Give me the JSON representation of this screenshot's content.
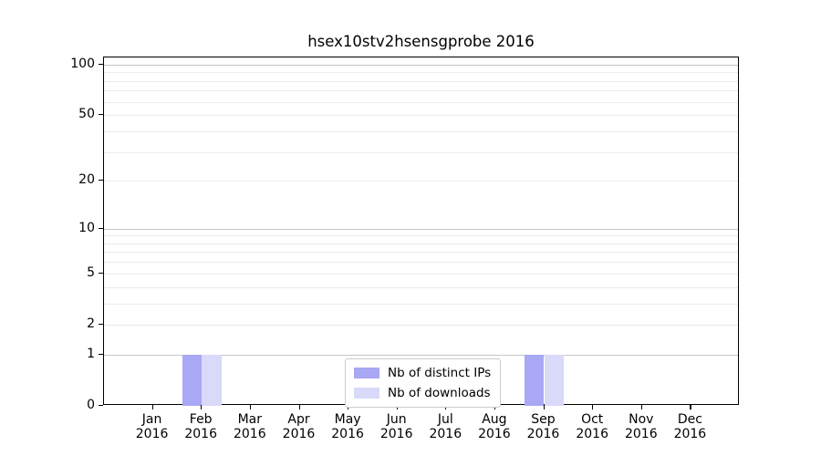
{
  "chart_data": {
    "type": "bar",
    "title": "hsex10stv2hsensgprobe 2016",
    "categories": [
      {
        "month": "Jan",
        "year": "2016"
      },
      {
        "month": "Feb",
        "year": "2016"
      },
      {
        "month": "Mar",
        "year": "2016"
      },
      {
        "month": "Apr",
        "year": "2016"
      },
      {
        "month": "May",
        "year": "2016"
      },
      {
        "month": "Jun",
        "year": "2016"
      },
      {
        "month": "Jul",
        "year": "2016"
      },
      {
        "month": "Aug",
        "year": "2016"
      },
      {
        "month": "Sep",
        "year": "2016"
      },
      {
        "month": "Oct",
        "year": "2016"
      },
      {
        "month": "Nov",
        "year": "2016"
      },
      {
        "month": "Dec",
        "year": "2016"
      }
    ],
    "series": [
      {
        "name": "Nb of distinct IPs",
        "color": "#a8a8f5",
        "values": [
          0,
          1,
          0,
          0,
          0,
          0,
          0,
          0,
          1,
          0,
          0,
          0
        ]
      },
      {
        "name": "Nb of downloads",
        "color": "#d9d9f9",
        "values": [
          0,
          1,
          0,
          0,
          0,
          0,
          0,
          0,
          1,
          0,
          0,
          0
        ]
      }
    ],
    "y_axis": {
      "scale": "log1p",
      "ticks": [
        0,
        1,
        2,
        5,
        10,
        20,
        50,
        100
      ],
      "major_gridlines": [
        1,
        10,
        100
      ],
      "minor_gridlines": [
        2,
        3,
        4,
        5,
        6,
        7,
        8,
        9,
        20,
        30,
        40,
        50,
        60,
        70,
        80,
        90
      ],
      "max": 110
    },
    "x_axis": {
      "lim": [
        -1,
        12
      ]
    },
    "legend": {
      "position": "lower center"
    },
    "colors": {
      "major_grid": "#c6c6c6",
      "minor_grid": "#ececec",
      "spine": "#000000"
    },
    "grid": "horizontal only"
  }
}
